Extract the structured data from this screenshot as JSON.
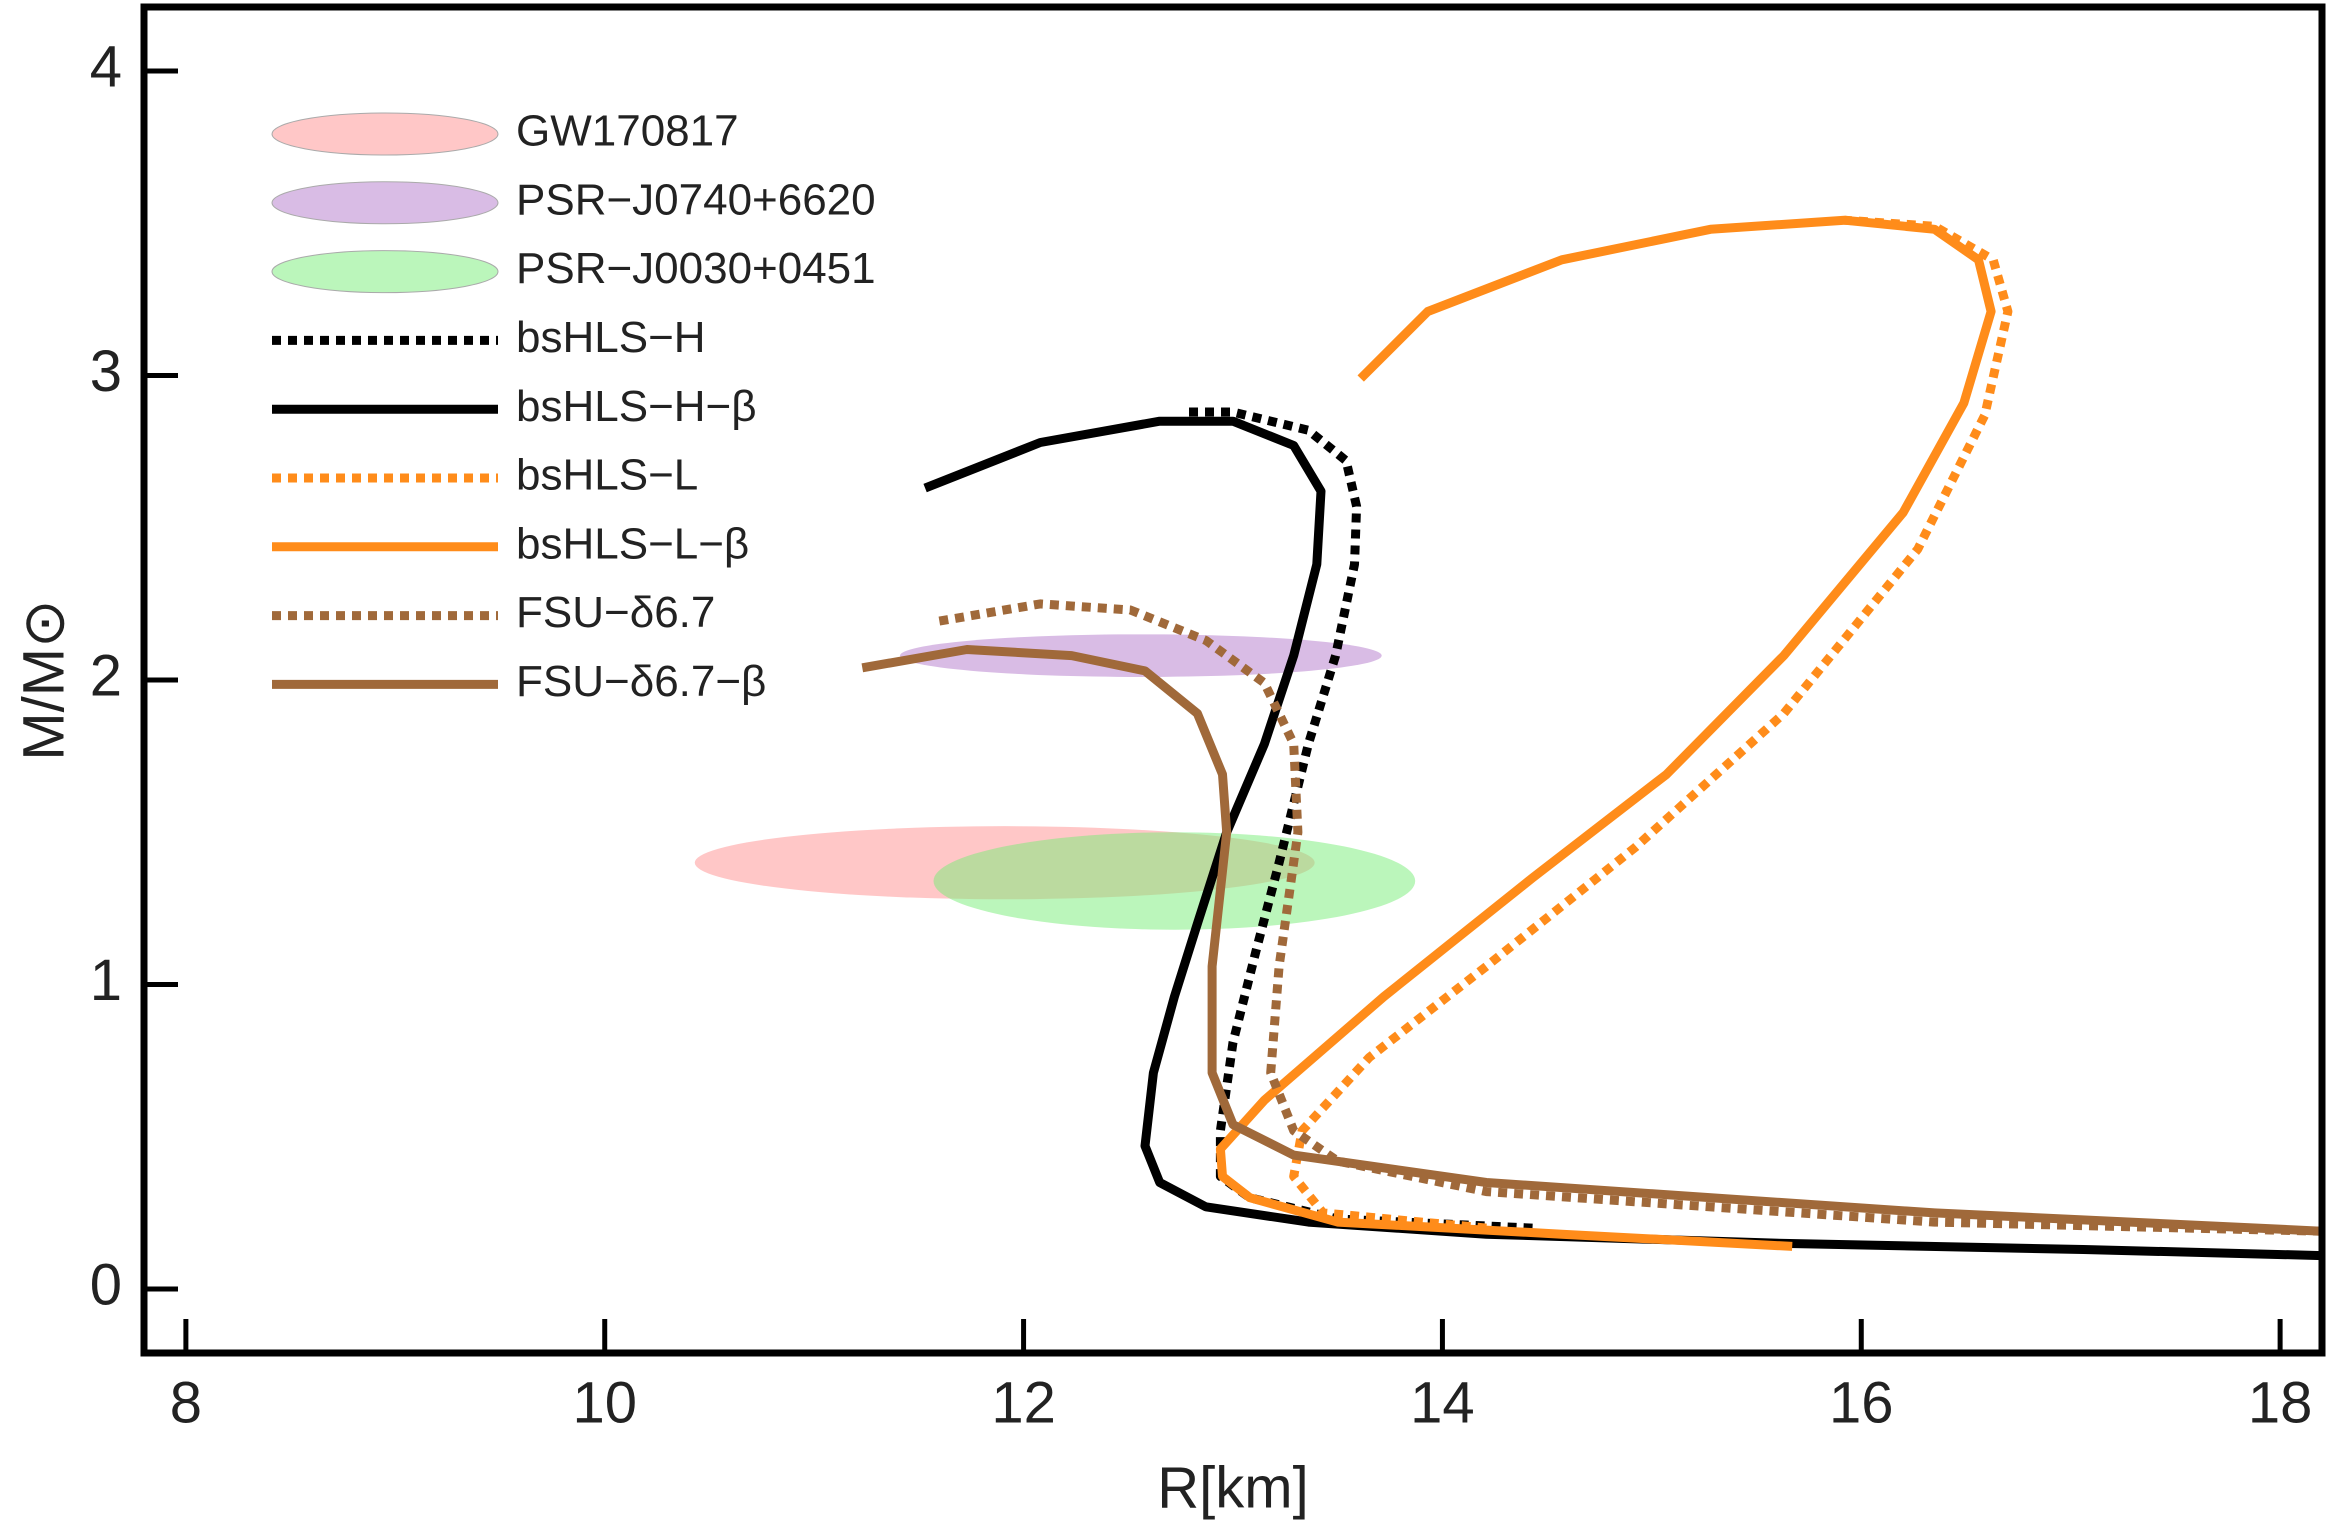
{
  "chart_data": {
    "type": "line",
    "x_label": "R[km]",
    "y_label": "M/M⊙",
    "xlim": [
      7.8,
      18.2
    ],
    "ylim": [
      -0.21,
      4.21
    ],
    "xticks": [
      8,
      10,
      12,
      14,
      16,
      18
    ],
    "yticks": [
      0,
      1,
      2,
      3,
      4
    ],
    "legend": "upper left",
    "regions": [
      {
        "name": "GW170817",
        "color": "#ff8f8f",
        "x": 11.91,
        "y": 1.4,
        "x_err": 1.48,
        "y_err": 0.12
      },
      {
        "name": "PSR−J0740+6620",
        "color": "#b47acb",
        "x": 12.56,
        "y": 2.08,
        "x_err": 1.15,
        "y_err": 0.07
      },
      {
        "name": "PSR−J0030+0451",
        "color": "#78ee78",
        "x": 12.72,
        "y": 1.34,
        "x_err": 1.15,
        "y_err": 0.16
      }
    ],
    "series": [
      {
        "name": "bsHLS−H",
        "color": "#000000",
        "style": "dotted",
        "x": [
          14.43,
          13.5,
          13.08,
          12.94,
          12.94,
          13.0,
          13.11,
          13.22,
          13.36,
          13.49,
          13.58,
          13.59,
          13.54,
          13.36,
          13.0,
          12.79
        ],
        "values": [
          0.2,
          0.23,
          0.3,
          0.37,
          0.52,
          0.81,
          1.11,
          1.4,
          1.79,
          2.08,
          2.38,
          2.57,
          2.72,
          2.82,
          2.88,
          2.88
        ]
      },
      {
        "name": "bsHLS−H−β",
        "color": "#000000",
        "style": "solid",
        "x": [
          18.2,
          17.06,
          15.63,
          14.21,
          13.36,
          12.87,
          12.65,
          12.58,
          12.62,
          12.72,
          12.83,
          12.97,
          13.15,
          13.29,
          13.4,
          13.42,
          13.29,
          13.0,
          12.65,
          12.08,
          11.53
        ],
        "values": [
          0.11,
          0.13,
          0.15,
          0.18,
          0.22,
          0.27,
          0.35,
          0.47,
          0.71,
          0.96,
          1.2,
          1.5,
          1.79,
          2.08,
          2.38,
          2.62,
          2.77,
          2.85,
          2.85,
          2.78,
          2.63
        ]
      },
      {
        "name": "bsHLS−L",
        "color": "#ff8c1a",
        "style": "dotted",
        "x": [
          14.21,
          13.43,
          13.29,
          13.33,
          13.65,
          14.21,
          14.92,
          15.63,
          16.27,
          16.59,
          16.7,
          16.63,
          16.35,
          15.92
        ],
        "values": [
          0.2,
          0.25,
          0.37,
          0.52,
          0.76,
          1.06,
          1.45,
          1.89,
          2.43,
          2.87,
          3.21,
          3.38,
          3.49,
          3.51
        ]
      },
      {
        "name": "bsHLS−L−β",
        "color": "#ff8c1a",
        "style": "solid",
        "x": [
          15.67,
          14.57,
          13.5,
          13.08,
          12.95,
          12.94,
          13.15,
          13.72,
          14.43,
          15.07,
          15.63,
          16.2,
          16.49,
          16.62,
          16.56,
          16.35,
          15.92,
          15.28,
          14.57,
          13.93,
          13.61
        ],
        "values": [
          0.14,
          0.18,
          0.22,
          0.3,
          0.37,
          0.46,
          0.62,
          0.96,
          1.35,
          1.69,
          2.08,
          2.55,
          2.91,
          3.21,
          3.38,
          3.48,
          3.51,
          3.48,
          3.38,
          3.21,
          2.99
        ]
      },
      {
        "name": "FSU−δ6.7",
        "color": "#a0693a",
        "style": "dotted",
        "x": [
          18.2,
          16.35,
          14.21,
          13.5,
          13.29,
          13.18,
          13.22,
          13.31,
          13.29,
          13.15,
          12.87,
          12.51,
          12.08,
          11.57
        ],
        "values": [
          0.19,
          0.22,
          0.32,
          0.42,
          0.52,
          0.71,
          1.06,
          1.5,
          1.79,
          1.99,
          2.13,
          2.23,
          2.25,
          2.19
        ]
      },
      {
        "name": "FSU−δ6.7−β",
        "color": "#a0693a",
        "style": "solid",
        "x": [
          18.2,
          16.35,
          14.21,
          13.29,
          13.0,
          12.9,
          12.9,
          12.97,
          12.95,
          12.83,
          12.58,
          12.23,
          11.73,
          11.23
        ],
        "values": [
          0.19,
          0.25,
          0.35,
          0.44,
          0.54,
          0.71,
          1.06,
          1.5,
          1.69,
          1.89,
          2.03,
          2.08,
          2.1,
          2.04
        ]
      }
    ]
  }
}
